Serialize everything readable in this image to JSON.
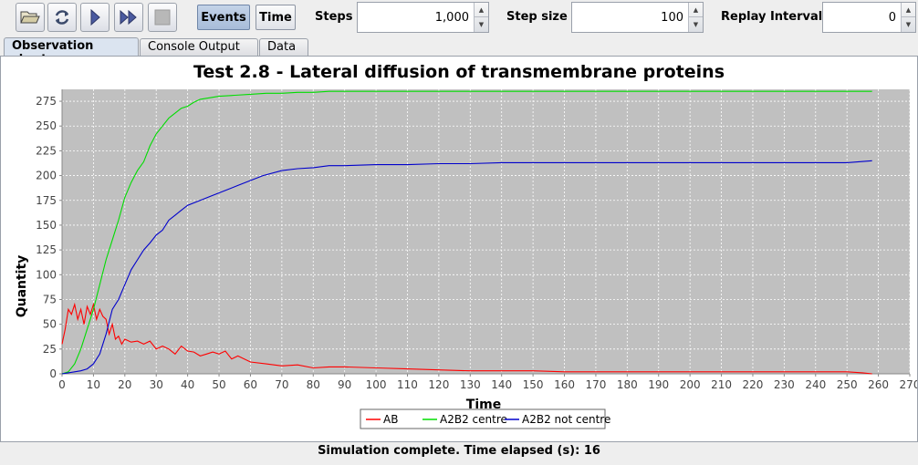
{
  "toolbar": {
    "open_icon": "folder-open-icon",
    "reset_icon": "refresh-icon",
    "step_icon": "play-icon",
    "run_icon": "fast-forward-icon",
    "stop_icon": "stop-icon",
    "events_label": "Events",
    "time_label": "Time",
    "steps_label": "Steps",
    "steps_value": "1,000",
    "step_size_label": "Step size",
    "step_size_value": "100",
    "replay_label": "Replay Interval",
    "replay_value": "0"
  },
  "tabs": [
    {
      "label": "Observation chart",
      "active": true
    },
    {
      "label": "Console Output",
      "active": false
    },
    {
      "label": "Data",
      "active": false
    }
  ],
  "status": "Simulation complete. Time elapsed (s): 16",
  "chart_data": {
    "type": "line",
    "title": "Test 2.8 - Lateral diffusion of transmembrane proteins",
    "xlabel": "Time",
    "ylabel": "Quantity",
    "xlim": [
      0,
      270
    ],
    "ylim": [
      0,
      287
    ],
    "xticks": [
      0,
      10,
      20,
      30,
      40,
      50,
      60,
      70,
      80,
      90,
      100,
      110,
      120,
      130,
      140,
      150,
      160,
      170,
      180,
      190,
      200,
      210,
      220,
      230,
      240,
      250,
      260,
      270
    ],
    "yticks": [
      0,
      25,
      50,
      75,
      100,
      125,
      150,
      175,
      200,
      225,
      250,
      275
    ],
    "grid": true,
    "background": "#c0c0c0",
    "legend_position": "bottom",
    "series": [
      {
        "name": "AB",
        "color": "#ff0000",
        "x": [
          0,
          1,
          2,
          3,
          4,
          5,
          6,
          7,
          8,
          9,
          10,
          11,
          12,
          13,
          14,
          15,
          16,
          17,
          18,
          19,
          20,
          22,
          24,
          26,
          28,
          30,
          32,
          34,
          36,
          38,
          40,
          42,
          44,
          46,
          48,
          50,
          52,
          54,
          56,
          60,
          65,
          70,
          75,
          80,
          85,
          90,
          100,
          110,
          120,
          130,
          140,
          150,
          160,
          170,
          180,
          190,
          200,
          210,
          220,
          230,
          240,
          250,
          255,
          258
        ],
        "y": [
          30,
          45,
          65,
          60,
          70,
          55,
          65,
          50,
          68,
          60,
          70,
          55,
          65,
          58,
          55,
          40,
          50,
          35,
          38,
          30,
          35,
          32,
          33,
          30,
          33,
          25,
          28,
          25,
          20,
          28,
          23,
          22,
          18,
          20,
          22,
          20,
          23,
          15,
          18,
          12,
          10,
          8,
          9,
          6,
          7,
          7,
          6,
          5,
          4,
          3,
          3,
          3,
          2,
          2,
          2,
          2,
          2,
          2,
          2,
          2,
          2,
          2,
          1,
          0
        ]
      },
      {
        "name": "A2B2 centre",
        "color": "#00dd00",
        "x": [
          0,
          2,
          4,
          6,
          8,
          10,
          12,
          14,
          16,
          18,
          20,
          22,
          24,
          26,
          28,
          30,
          32,
          34,
          36,
          38,
          40,
          42,
          44,
          46,
          48,
          50,
          55,
          60,
          65,
          70,
          75,
          80,
          85,
          90,
          100,
          120,
          140,
          160,
          180,
          200,
          220,
          240,
          258
        ],
        "y": [
          0,
          2,
          10,
          25,
          45,
          65,
          90,
          115,
          135,
          155,
          178,
          193,
          205,
          214,
          230,
          242,
          250,
          258,
          263,
          268,
          270,
          274,
          277,
          278,
          279,
          280,
          281,
          282,
          283,
          283,
          284,
          284,
          285,
          285,
          285,
          285,
          285,
          285,
          285,
          285,
          285,
          285,
          285
        ]
      },
      {
        "name": "A2B2 not centre",
        "color": "#0000cc",
        "x": [
          0,
          4,
          6,
          8,
          10,
          12,
          14,
          16,
          18,
          20,
          22,
          24,
          26,
          28,
          30,
          32,
          34,
          36,
          38,
          40,
          44,
          48,
          52,
          56,
          60,
          64,
          70,
          75,
          80,
          85,
          90,
          100,
          110,
          120,
          130,
          140,
          150,
          160,
          180,
          200,
          220,
          240,
          250,
          258
        ],
        "y": [
          0,
          2,
          3,
          5,
          10,
          20,
          40,
          65,
          75,
          90,
          105,
          115,
          125,
          132,
          140,
          145,
          155,
          160,
          165,
          170,
          175,
          180,
          185,
          190,
          195,
          200,
          205,
          207,
          208,
          210,
          210,
          211,
          211,
          212,
          212,
          213,
          213,
          213,
          213,
          213,
          213,
          213,
          213,
          215
        ]
      }
    ]
  }
}
